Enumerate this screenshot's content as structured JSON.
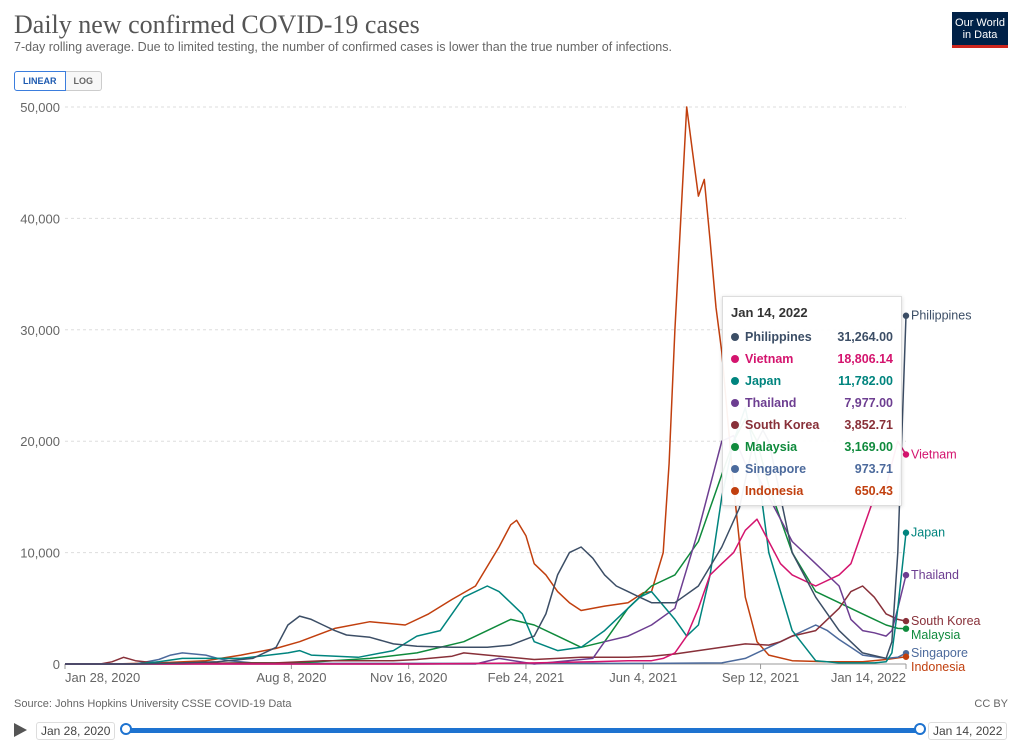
{
  "header": {
    "title": "Daily new confirmed COVID-19 cases",
    "subtitle": "7-day rolling average. Due to limited testing, the number of confirmed cases is lower than the true number of infections.",
    "logo_line1": "Our World",
    "logo_line2": "in Data",
    "toggle_linear": "LINEAR",
    "toggle_log": "LOG"
  },
  "footer": {
    "source": "Source: Johns Hopkins University CSSE COVID-19 Data",
    "license": "CC BY"
  },
  "timeline": {
    "start": "Jan 28, 2020",
    "end": "Jan 14, 2022"
  },
  "tooltip": {
    "date": "Jan 14, 2022",
    "rows": [
      {
        "name": "Philippines",
        "value": "31,264.00",
        "color": "#3c4e66"
      },
      {
        "name": "Vietnam",
        "value": "18,806.14",
        "color": "#d4146e"
      },
      {
        "name": "Japan",
        "value": "11,782.00",
        "color": "#00847e"
      },
      {
        "name": "Thailand",
        "value": "7,977.00",
        "color": "#6d3e91"
      },
      {
        "name": "South Korea",
        "value": "3,852.71",
        "color": "#883039"
      },
      {
        "name": "Malaysia",
        "value": "3,169.00",
        "color": "#0f8a3c"
      },
      {
        "name": "Singapore",
        "value": "973.71",
        "color": "#4c6a9c"
      },
      {
        "name": "Indonesia",
        "value": "650.43",
        "color": "#c13f0e"
      }
    ]
  },
  "chart_data": {
    "type": "line",
    "title": "Daily new confirmed COVID-19 cases",
    "xlabel": "",
    "ylabel": "",
    "ylim": [
      0,
      50000
    ],
    "yticks": [
      0,
      10000,
      20000,
      30000,
      40000,
      50000
    ],
    "ytick_labels": [
      "0",
      "10,000",
      "20,000",
      "30,000",
      "40,000",
      "50,000"
    ],
    "xlim_days": [
      0,
      717
    ],
    "xticks": [
      {
        "day": 0,
        "label": "Jan 28, 2020"
      },
      {
        "day": 193,
        "label": "Aug 8, 2020"
      },
      {
        "day": 293,
        "label": "Nov 16, 2020"
      },
      {
        "day": 393,
        "label": "Feb 24, 2021"
      },
      {
        "day": 493,
        "label": "Jun 4, 2021"
      },
      {
        "day": 593,
        "label": "Sep 12, 2021"
      },
      {
        "day": 717,
        "label": "Jan 14, 2022"
      }
    ],
    "series": [
      {
        "name": "Indonesia",
        "color": "#c13f0e",
        "x": [
          0,
          40,
          80,
          120,
          150,
          180,
          200,
          230,
          260,
          290,
          310,
          330,
          350,
          370,
          380,
          385,
          393,
          400,
          410,
          420,
          430,
          440,
          460,
          480,
          493,
          500,
          510,
          515,
          520,
          525,
          530,
          535,
          540,
          545,
          550,
          555,
          560,
          565,
          570,
          575,
          580,
          585,
          590,
          600,
          620,
          650,
          680,
          700,
          717
        ],
        "y": [
          0,
          0,
          100,
          300,
          800,
          1400,
          2000,
          3200,
          3800,
          3500,
          4500,
          5800,
          7000,
          10500,
          12500,
          12900,
          11500,
          9000,
          8000,
          6500,
          5500,
          4800,
          5200,
          5500,
          6400,
          6500,
          10000,
          18000,
          30000,
          40000,
          50000,
          46000,
          42000,
          43500,
          38000,
          32000,
          28000,
          22000,
          16000,
          11000,
          6000,
          4000,
          2000,
          800,
          300,
          200,
          200,
          400,
          650
        ]
      },
      {
        "name": "Philippines",
        "color": "#3c4e66",
        "x": [
          0,
          60,
          100,
          130,
          160,
          180,
          190,
          200,
          210,
          220,
          230,
          240,
          260,
          280,
          300,
          330,
          360,
          380,
          400,
          410,
          420,
          430,
          440,
          450,
          460,
          470,
          480,
          490,
          500,
          520,
          540,
          560,
          575,
          585,
          595,
          600,
          610,
          620,
          640,
          660,
          680,
          700,
          705,
          710,
          717
        ],
        "y": [
          0,
          0,
          100,
          200,
          500,
          1500,
          3500,
          4300,
          4000,
          3500,
          3000,
          2600,
          2400,
          1800,
          1600,
          1500,
          1500,
          1700,
          2500,
          4500,
          8000,
          10000,
          10500,
          9500,
          8000,
          7000,
          6500,
          6000,
          5500,
          5500,
          7000,
          10500,
          14000,
          19000,
          21000,
          20000,
          15000,
          10000,
          6000,
          3000,
          1000,
          500,
          2000,
          10000,
          31264
        ]
      },
      {
        "name": "Vietnam",
        "color": "#d4146e",
        "x": [
          0,
          300,
          400,
          450,
          480,
          500,
          510,
          520,
          530,
          540,
          550,
          560,
          570,
          580,
          590,
          600,
          610,
          620,
          640,
          660,
          670,
          680,
          690,
          700,
          705,
          710,
          717
        ],
        "y": [
          0,
          0,
          100,
          200,
          300,
          300,
          500,
          1000,
          2500,
          5000,
          8000,
          9000,
          10000,
          12000,
          13000,
          11000,
          9000,
          8000,
          7000,
          8000,
          9000,
          12000,
          15000,
          16000,
          18000,
          20000,
          18806
        ]
      },
      {
        "name": "Japan",
        "color": "#00847e",
        "x": [
          0,
          60,
          80,
          100,
          150,
          190,
          200,
          210,
          250,
          280,
          300,
          320,
          340,
          360,
          370,
          380,
          390,
          400,
          420,
          440,
          460,
          480,
          490,
          500,
          520,
          530,
          540,
          550,
          560,
          570,
          580,
          590,
          600,
          620,
          640,
          660,
          680,
          690,
          700,
          705,
          710,
          717
        ],
        "y": [
          0,
          0,
          200,
          500,
          500,
          1000,
          1200,
          800,
          600,
          1200,
          2500,
          3000,
          6000,
          7000,
          6500,
          5500,
          4500,
          2000,
          1200,
          1500,
          3000,
          5000,
          6000,
          6500,
          4000,
          2500,
          3500,
          8000,
          15000,
          20000,
          23000,
          18000,
          10000,
          3000,
          300,
          100,
          100,
          100,
          200,
          1000,
          5000,
          11782
        ]
      },
      {
        "name": "Thailand",
        "color": "#6d3e91",
        "x": [
          0,
          350,
          370,
          400,
          450,
          460,
          480,
          500,
          520,
          540,
          560,
          570,
          580,
          590,
          600,
          610,
          620,
          640,
          660,
          670,
          680,
          690,
          700,
          705,
          710,
          717
        ],
        "y": [
          0,
          0,
          500,
          0,
          500,
          2000,
          2500,
          3500,
          5000,
          12000,
          20000,
          20500,
          18000,
          17000,
          15000,
          13000,
          11000,
          9000,
          7000,
          4000,
          3000,
          2800,
          2500,
          3000,
          5000,
          7977
        ]
      },
      {
        "name": "South Korea",
        "color": "#883039",
        "x": [
          0,
          30,
          40,
          50,
          60,
          80,
          180,
          220,
          280,
          300,
          330,
          340,
          360,
          400,
          440,
          480,
          500,
          520,
          560,
          580,
          600,
          610,
          620,
          640,
          650,
          660,
          670,
          680,
          690,
          700,
          710,
          717
        ],
        "y": [
          0,
          0,
          200,
          600,
          300,
          50,
          100,
          300,
          300,
          400,
          700,
          1000,
          800,
          400,
          600,
          600,
          700,
          900,
          1500,
          1800,
          1700,
          2000,
          2500,
          3000,
          4000,
          5000,
          6500,
          7000,
          6000,
          4500,
          4000,
          3853
        ]
      },
      {
        "name": "Malaysia",
        "color": "#0f8a3c",
        "x": [
          0,
          100,
          150,
          200,
          260,
          300,
          340,
          360,
          380,
          400,
          420,
          440,
          460,
          480,
          500,
          520,
          540,
          560,
          570,
          580,
          590,
          600,
          620,
          640,
          660,
          680,
          690,
          700,
          710,
          717
        ],
        "y": [
          0,
          0,
          100,
          100,
          500,
          1000,
          2000,
          3000,
          4000,
          3500,
          2500,
          1500,
          2000,
          5000,
          7000,
          8000,
          11000,
          17000,
          20000,
          22000,
          20000,
          16000,
          10000,
          6500,
          5500,
          4500,
          4000,
          3500,
          3200,
          3169
        ]
      },
      {
        "name": "Singapore",
        "color": "#4c6a9c",
        "x": [
          0,
          60,
          80,
          90,
          100,
          120,
          130,
          140,
          160,
          200,
          500,
          560,
          580,
          600,
          620,
          640,
          650,
          660,
          670,
          680,
          700,
          710,
          717
        ],
        "y": [
          0,
          0,
          400,
          800,
          1000,
          800,
          500,
          300,
          100,
          50,
          50,
          100,
          500,
          1500,
          2500,
          3500,
          3000,
          2200,
          1500,
          800,
          500,
          600,
          974
        ]
      }
    ]
  }
}
